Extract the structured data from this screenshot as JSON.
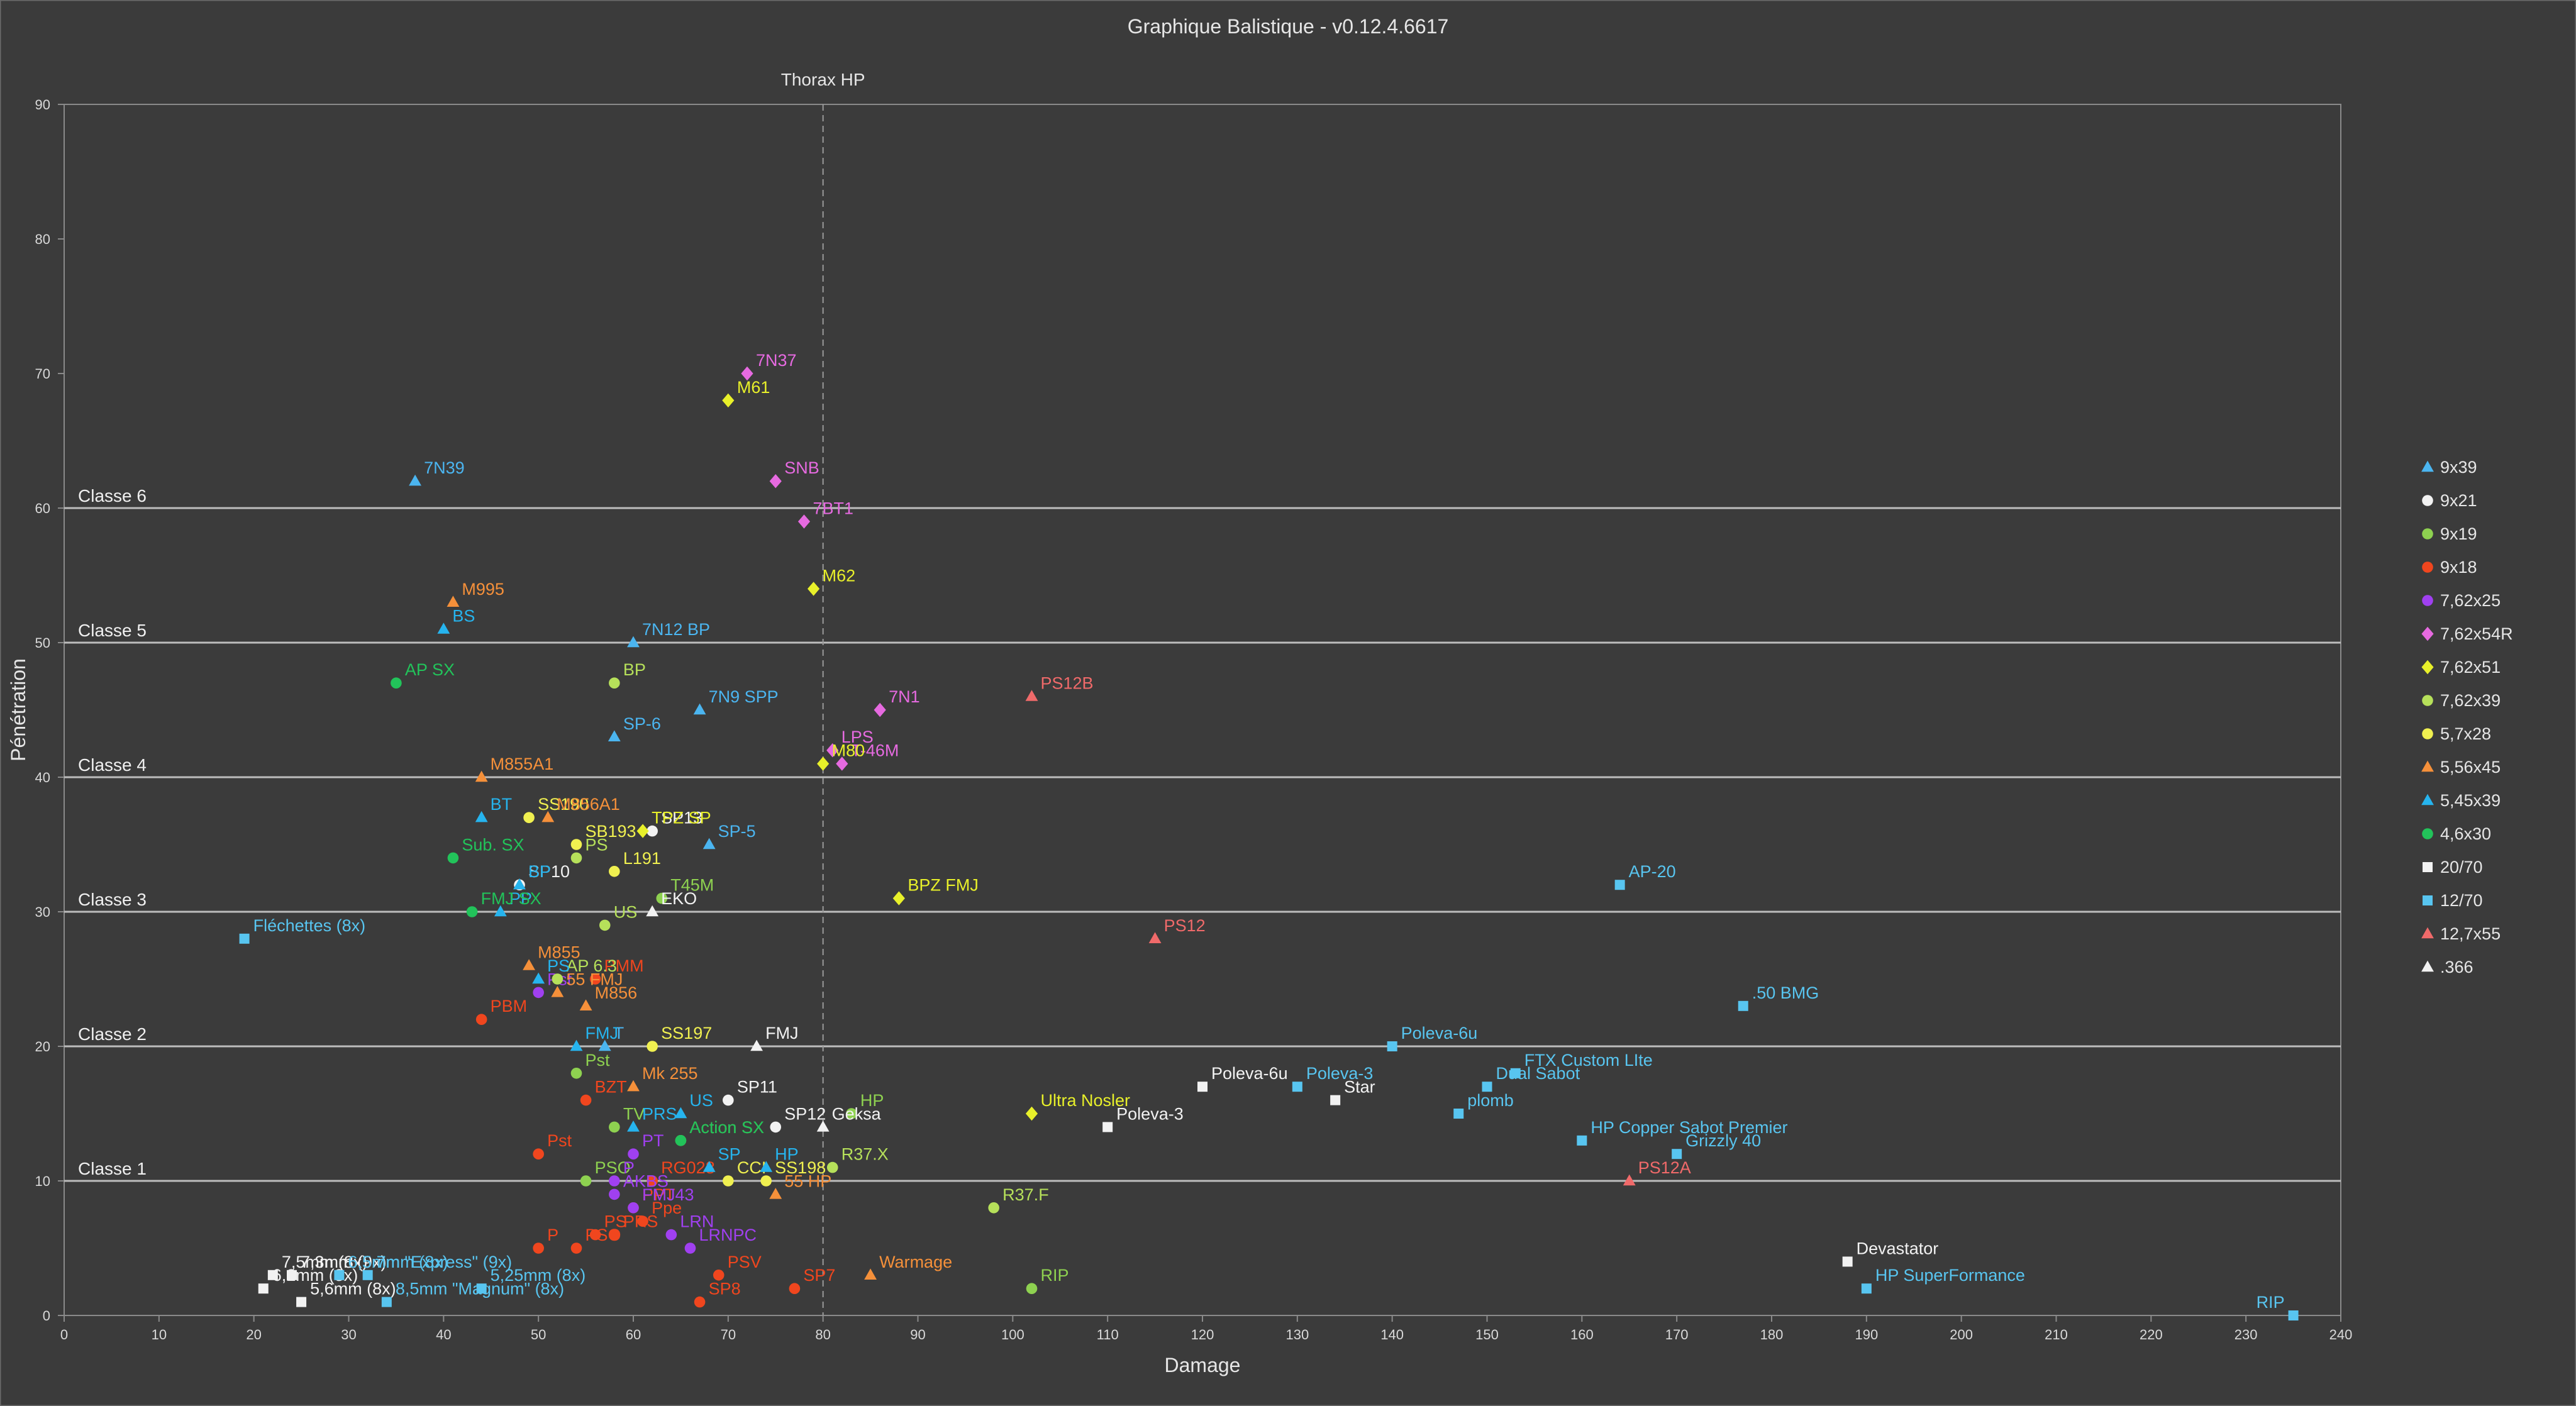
{
  "chart_data": {
    "type": "scatter",
    "title": "Graphique Balistique - v0.12.4.6617",
    "xlabel": "Damage",
    "ylabel": "Pénétration",
    "xlim": [
      0,
      240
    ],
    "ylim": [
      0,
      90
    ],
    "x_ticks": [
      "0",
      "10",
      "20",
      "30",
      "40",
      "50",
      "60",
      "70",
      "80",
      "90",
      "100",
      "110",
      "120",
      "130",
      "140",
      "150",
      "160",
      "170",
      "180",
      "190",
      "200",
      "210",
      "220",
      "230",
      "240"
    ],
    "y_ticks": [
      "0",
      "10",
      "20",
      "30",
      "40",
      "50",
      "60",
      "70",
      "80",
      "90"
    ],
    "grid": false,
    "legend_position": "right",
    "class_lines": [
      {
        "y": 10,
        "label": "Classe 1"
      },
      {
        "y": 20,
        "label": "Classe 2"
      },
      {
        "y": 30,
        "label": "Classe 3"
      },
      {
        "y": 40,
        "label": "Classe 4"
      },
      {
        "y": 50,
        "label": "Classe 5"
      },
      {
        "y": 60,
        "label": "Classe 6"
      }
    ],
    "reference_line": {
      "x": 80,
      "label": "Thorax HP"
    },
    "series": [
      {
        "name": "9x39",
        "color": "#4bb5f0",
        "marker": "triangle",
        "points": [
          {
            "x": 57,
            "y": 20,
            "label": "T"
          },
          {
            "x": 67,
            "y": 45,
            "label": "7N9 SPP"
          },
          {
            "x": 68,
            "y": 35,
            "label": "SP-5"
          },
          {
            "x": 58,
            "y": 43,
            "label": "SP-6"
          },
          {
            "x": 37,
            "y": 62,
            "label": "7N39"
          },
          {
            "x": 60,
            "y": 50,
            "label": "7N12 BP"
          }
        ]
      },
      {
        "name": "9x21",
        "color": "#f2f2f2",
        "marker": "circle",
        "points": [
          {
            "x": 48,
            "y": 32,
            "label": "SP10"
          },
          {
            "x": 70,
            "y": 16,
            "label": "SP11"
          },
          {
            "x": 75,
            "y": 14,
            "label": "SP12"
          },
          {
            "x": 62,
            "y": 36,
            "label": "SP13"
          }
        ]
      },
      {
        "name": "9x19",
        "color": "#8ed150",
        "marker": "circle",
        "points": [
          {
            "x": 83,
            "y": 15,
            "label": "HP"
          },
          {
            "x": 55,
            "y": 10,
            "label": "PSO"
          },
          {
            "x": 102,
            "y": 2,
            "label": "RIP"
          },
          {
            "x": 58,
            "y": 14,
            "label": "TV"
          },
          {
            "x": 54,
            "y": 18,
            "label": "Pst"
          },
          {
            "x": 65,
            "y": 13,
            "label": "Action SX"
          },
          {
            "x": 63,
            "y": 31,
            "label": "T45M"
          }
        ]
      },
      {
        "name": "9x18",
        "color": "#f0461e",
        "marker": "circle",
        "points": [
          {
            "x": 50,
            "y": 12,
            "label": "Pst"
          },
          {
            "x": 55,
            "y": 16,
            "label": "BZT"
          },
          {
            "x": 62,
            "y": 10,
            "label": "RG028"
          },
          {
            "x": 61,
            "y": 7,
            "label": "Ppe"
          },
          {
            "x": 58,
            "y": 6,
            "label": "PRS"
          },
          {
            "x": 56,
            "y": 6,
            "label": "PS"
          },
          {
            "x": 54,
            "y": 5,
            "label": "PSO"
          },
          {
            "x": 50,
            "y": 5,
            "label": "P"
          },
          {
            "x": 60,
            "y": 8,
            "label": "PPT"
          },
          {
            "x": 69,
            "y": 3,
            "label": "PSV"
          },
          {
            "x": 67,
            "y": 1,
            "label": "SP8"
          },
          {
            "x": 77,
            "y": 2,
            "label": "SP7"
          },
          {
            "x": 56,
            "y": 25,
            "label": "PMM"
          },
          {
            "x": 44,
            "y": 22,
            "label": "PBM"
          }
        ]
      },
      {
        "name": "7,62x25",
        "color": "#a040f0",
        "marker": "circle",
        "points": [
          {
            "x": 50,
            "y": 24,
            "label": "Pst"
          },
          {
            "x": 58,
            "y": 10,
            "label": "P"
          },
          {
            "x": 60,
            "y": 12,
            "label": "PT"
          },
          {
            "x": 58,
            "y": 9,
            "label": "AKBS"
          },
          {
            "x": 60,
            "y": 8,
            "label": "FMJ43"
          },
          {
            "x": 64,
            "y": 6,
            "label": "LRN"
          },
          {
            "x": 66,
            "y": 5,
            "label": "LRNPC"
          }
        ]
      },
      {
        "name": "7,62x54R",
        "color": "#e66ae0",
        "marker": "diamond",
        "points": [
          {
            "x": 72,
            "y": 70,
            "label": "7N37"
          },
          {
            "x": 75,
            "y": 62,
            "label": "SNB"
          },
          {
            "x": 78,
            "y": 59,
            "label": "7BT1"
          },
          {
            "x": 86,
            "y": 45,
            "label": "7N1"
          },
          {
            "x": 81,
            "y": 42,
            "label": "LPS"
          },
          {
            "x": 82,
            "y": 41,
            "label": "T-46M"
          }
        ]
      },
      {
        "name": "7,62x51",
        "color": "#e8f02a",
        "marker": "diamond",
        "points": [
          {
            "x": 70,
            "y": 68,
            "label": "M61"
          },
          {
            "x": 79,
            "y": 54,
            "label": "M62"
          },
          {
            "x": 80,
            "y": 41,
            "label": "M80"
          },
          {
            "x": 88,
            "y": 31,
            "label": "BPZ FMJ"
          },
          {
            "x": 61,
            "y": 36,
            "label": "TPZ SP"
          },
          {
            "x": 102,
            "y": 15,
            "label": "Ultra Nosler"
          }
        ]
      },
      {
        "name": "7,62x39",
        "color": "#b6e05a",
        "marker": "circle",
        "points": [
          {
            "x": 58,
            "y": 47,
            "label": "BP"
          },
          {
            "x": 54,
            "y": 34,
            "label": "PS"
          },
          {
            "x": 57,
            "y": 29,
            "label": "US"
          },
          {
            "x": 98,
            "y": 8,
            "label": "R37.F"
          },
          {
            "x": 81,
            "y": 11,
            "label": "R37.X"
          },
          {
            "x": 52,
            "y": 25,
            "label": "AP 6.3"
          }
        ]
      },
      {
        "name": "5,7x28",
        "color": "#f0f050",
        "marker": "circle",
        "points": [
          {
            "x": 49,
            "y": 37,
            "label": "SS190"
          },
          {
            "x": 54,
            "y": 35,
            "label": "SB193"
          },
          {
            "x": 58,
            "y": 33,
            "label": "L191"
          },
          {
            "x": 62,
            "y": 20,
            "label": "SS197"
          },
          {
            "x": 70,
            "y": 10,
            "label": "CCI"
          },
          {
            "x": 74,
            "y": 10,
            "label": "SS198"
          }
        ]
      },
      {
        "name": "5,56x45",
        "color": "#f5903a",
        "marker": "triangle",
        "points": [
          {
            "x": 41,
            "y": 53,
            "label": "M995"
          },
          {
            "x": 44,
            "y": 40,
            "label": "M855A1"
          },
          {
            "x": 51,
            "y": 37,
            "label": "M856A1"
          },
          {
            "x": 49,
            "y": 26,
            "label": "M855"
          },
          {
            "x": 55,
            "y": 23,
            "label": "M856"
          },
          {
            "x": 52,
            "y": 24,
            "label": "55 FMJ"
          },
          {
            "x": 60,
            "y": 17,
            "label": "Mk 255"
          },
          {
            "x": 75,
            "y": 9,
            "label": "55 HP"
          },
          {
            "x": 85,
            "y": 3,
            "label": "Warmage"
          }
        ]
      },
      {
        "name": "5,45x39",
        "color": "#26b4ee",
        "marker": "triangle",
        "points": [
          {
            "x": 40,
            "y": 51,
            "label": "BS"
          },
          {
            "x": 44,
            "y": 37,
            "label": "BT"
          },
          {
            "x": 48,
            "y": 32,
            "label": "BP"
          },
          {
            "x": 46,
            "y": 30,
            "label": "PP"
          },
          {
            "x": 50,
            "y": 25,
            "label": "PS"
          },
          {
            "x": 54,
            "y": 20,
            "label": "FMJ"
          },
          {
            "x": 60,
            "y": 14,
            "label": "PRS"
          },
          {
            "x": 65,
            "y": 15,
            "label": "US"
          },
          {
            "x": 68,
            "y": 11,
            "label": "SP"
          },
          {
            "x": 74,
            "y": 11,
            "label": "HP"
          }
        ]
      },
      {
        "name": "4,6x30",
        "color": "#22c35a",
        "marker": "circle",
        "points": [
          {
            "x": 35,
            "y": 47,
            "label": "AP SX"
          },
          {
            "x": 41,
            "y": 34,
            "label": "Sub. SX"
          },
          {
            "x": 43,
            "y": 30,
            "label": "FMJ SX"
          },
          {
            "x": 65,
            "y": 13,
            "label": "Action SX"
          }
        ]
      },
      {
        "name": "20/70",
        "color": "#f2f2f2",
        "marker": "square",
        "points": [
          {
            "x": 22,
            "y": 3,
            "label": "7,5mm (8x)"
          },
          {
            "x": 24,
            "y": 3,
            "label": "7,3mm (9x)"
          },
          {
            "x": 21,
            "y": 2,
            "label": "6,2mm (8x)"
          },
          {
            "x": 25,
            "y": 1,
            "label": "5,6mm (8x)"
          },
          {
            "x": 110,
            "y": 14,
            "label": "Poleva-3"
          },
          {
            "x": 120,
            "y": 17,
            "label": "Poleva-6u"
          },
          {
            "x": 134,
            "y": 16,
            "label": "Star"
          },
          {
            "x": 188,
            "y": 4,
            "label": "Devastator"
          }
        ]
      },
      {
        "name": "12/70",
        "color": "#58c5f0",
        "marker": "square",
        "points": [
          {
            "x": 19,
            "y": 28,
            "label": "Fléchettes (8x)"
          },
          {
            "x": 29,
            "y": 3,
            "label": "6,5mm \"Express\" (9x)"
          },
          {
            "x": 32,
            "y": 3,
            "label": "7mm (8x)"
          },
          {
            "x": 34,
            "y": 1,
            "label": "8,5mm \"Magnum\" (8x)"
          },
          {
            "x": 44,
            "y": 2,
            "label": "5,25mm (8x)"
          },
          {
            "x": 130,
            "y": 17,
            "label": "Poleva-3"
          },
          {
            "x": 140,
            "y": 20,
            "label": "Poleva-6u"
          },
          {
            "x": 153,
            "y": 18,
            "label": "FTX Custom LIte"
          },
          {
            "x": 150,
            "y": 17,
            "label": "Dual Sabot"
          },
          {
            "x": 147,
            "y": 15,
            "label": "plomb"
          },
          {
            "x": 160,
            "y": 13,
            "label": "HP Copper Sabot Premier"
          },
          {
            "x": 170,
            "y": 12,
            "label": "Grizzly 40"
          },
          {
            "x": 164,
            "y": 32,
            "label": "AP-20"
          },
          {
            "x": 177,
            "y": 23,
            "label": ".50 BMG"
          },
          {
            "x": 190,
            "y": 2,
            "label": "HP SuperFormance"
          },
          {
            "x": 235,
            "y": 0,
            "label": "RIP"
          }
        ]
      },
      {
        "name": "12,7x55",
        "color": "#f06a6a",
        "marker": "triangle",
        "points": [
          {
            "x": 102,
            "y": 46,
            "label": "PS12B"
          },
          {
            "x": 115,
            "y": 28,
            "label": "PS12"
          },
          {
            "x": 165,
            "y": 10,
            "label": "PS12A"
          }
        ]
      },
      {
        "name": ".366",
        "color": "#f2f2f2",
        "marker": "triangle",
        "points": [
          {
            "x": 62,
            "y": 30,
            "label": "EKO"
          },
          {
            "x": 73,
            "y": 20,
            "label": "FMJ"
          },
          {
            "x": 80,
            "y": 14,
            "label": "Geksa"
          }
        ]
      }
    ]
  }
}
